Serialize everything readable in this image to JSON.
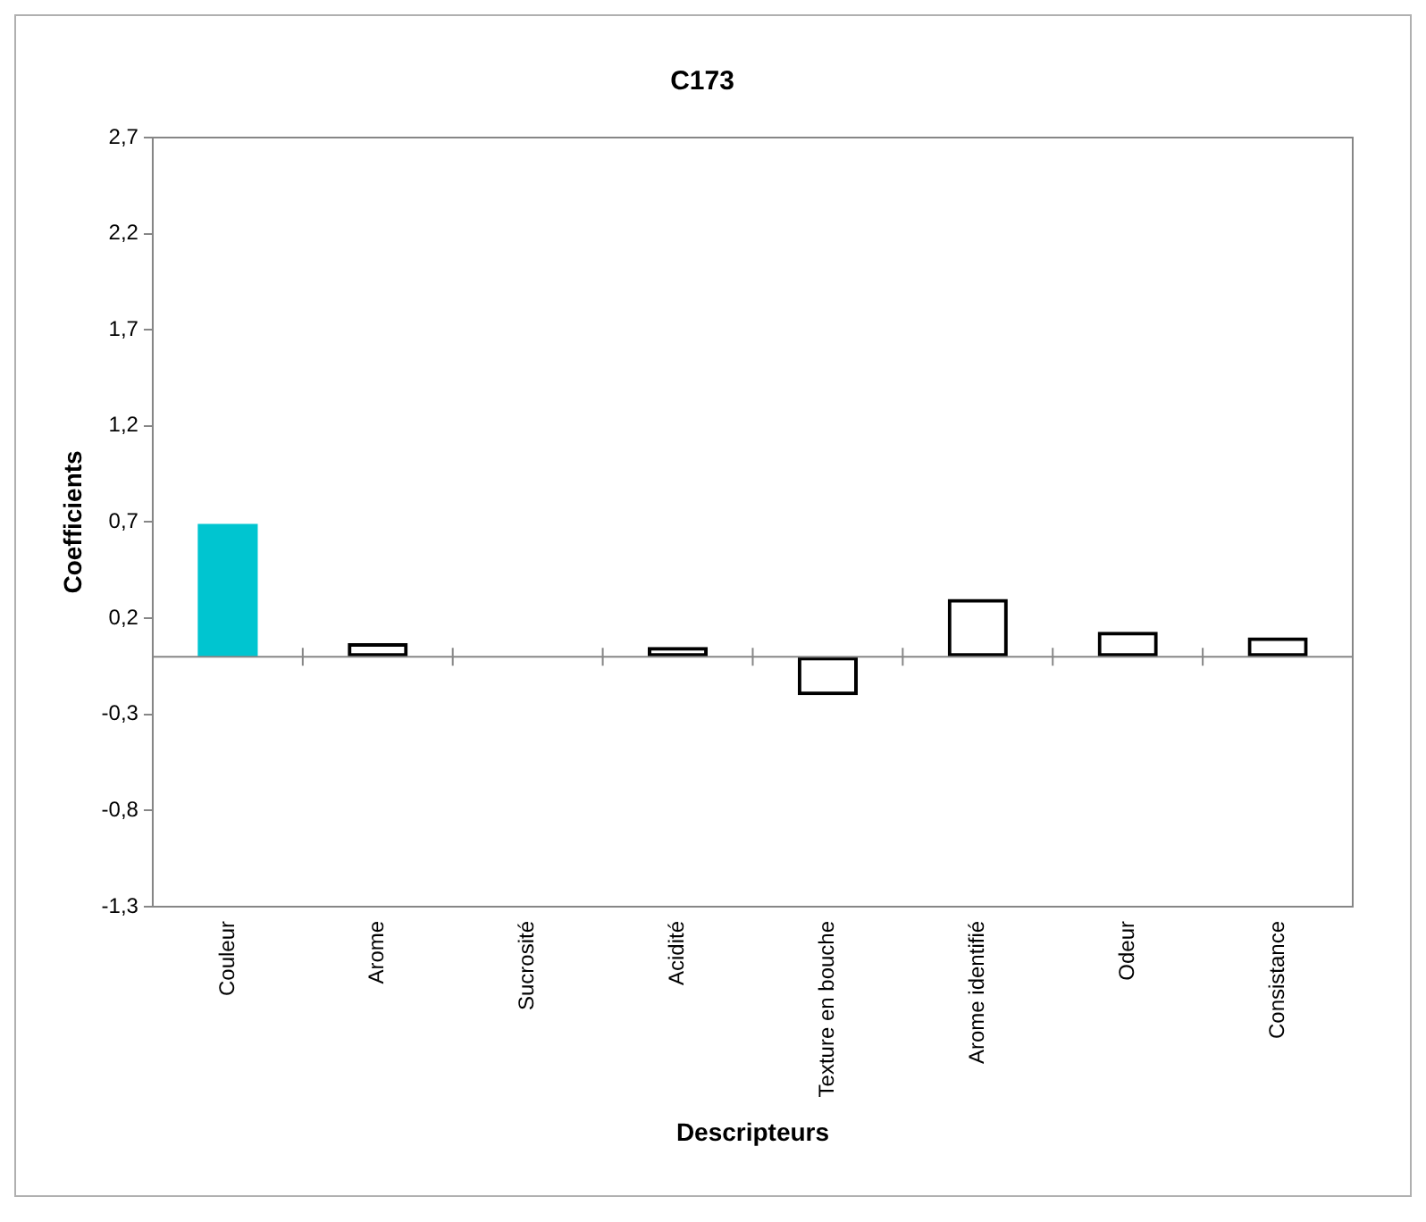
{
  "chart_data": {
    "type": "bar",
    "title": "C173",
    "xlabel": "Descripteurs",
    "ylabel": "Coefficients",
    "categories": [
      "Couleur",
      "Arome",
      "Sucrosité",
      "Acidité",
      "Texture en bouche",
      "Arome identifié",
      "Odeur",
      "Consistance"
    ],
    "values": [
      0.69,
      0.07,
      0,
      0.05,
      -0.2,
      0.3,
      0.13,
      0.1
    ],
    "colors": [
      "#00c5d0",
      "#000000",
      "#000000",
      "#000000",
      "#000000",
      "#000000",
      "#000000",
      "#000000"
    ],
    "ylim": [
      -1.3,
      2.7
    ],
    "yticks": [
      {
        "value": -1.3,
        "label": "-1,3"
      },
      {
        "value": -0.8,
        "label": "-0,8"
      },
      {
        "value": -0.3,
        "label": "-0,3"
      },
      {
        "value": 0.2,
        "label": "0,2"
      },
      {
        "value": 0.7,
        "label": "0,7"
      },
      {
        "value": 1.2,
        "label": "1,2"
      },
      {
        "value": 1.7,
        "label": "1,7"
      },
      {
        "value": 2.2,
        "label": "2,2"
      },
      {
        "value": 2.7,
        "label": "2,7"
      }
    ],
    "grid": false,
    "legend": false
  }
}
